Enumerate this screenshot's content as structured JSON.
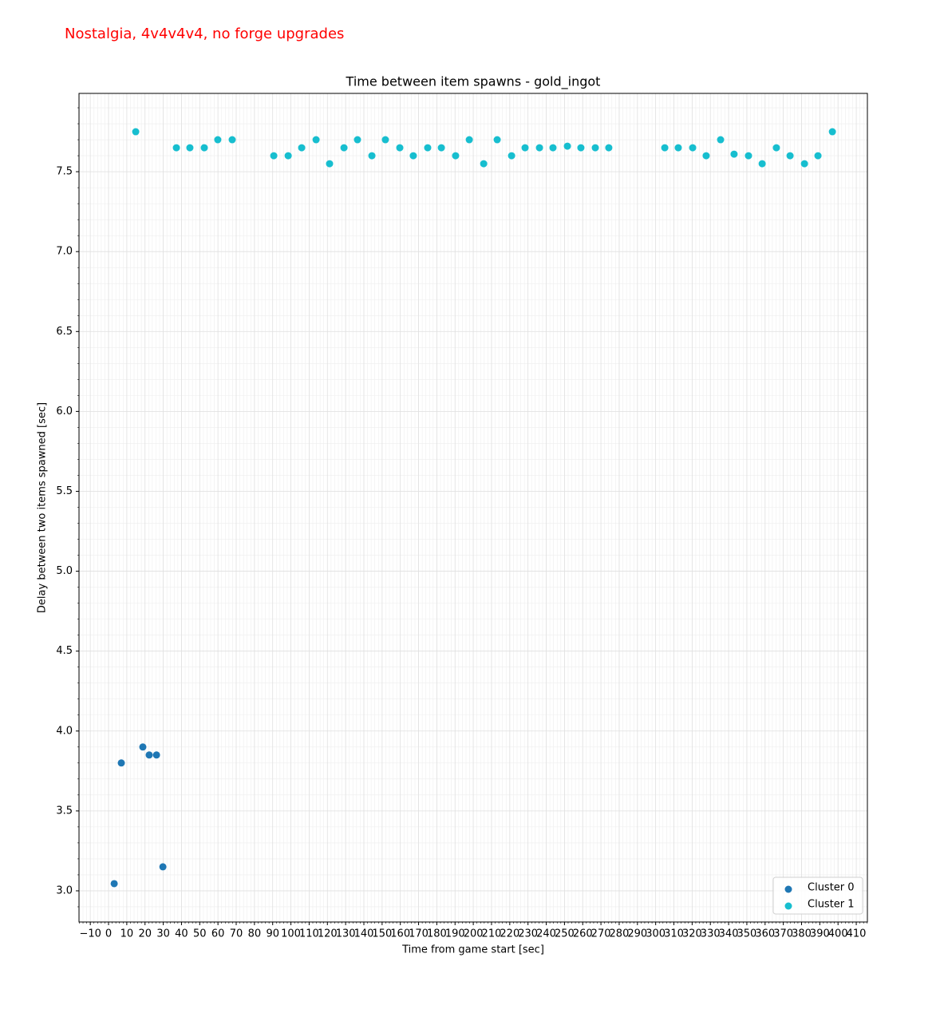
{
  "chart_data": {
    "type": "scatter",
    "suptitle": "Nostalgia, 4v4v4v4, no forge upgrades",
    "suptitle_color": "#ff0000",
    "title": "Time between item spawns - gold_ingot",
    "xlabel": "Time from game start [sec]",
    "ylabel": "Delay between two items spawned [sec]",
    "xlim": [
      -16.2,
      416.1
    ],
    "ylim": [
      2.805,
      7.99
    ],
    "xticks": [
      {
        "value": -10,
        "label": "−10"
      },
      0,
      10,
      20,
      30,
      40,
      50,
      60,
      70,
      80,
      90,
      100,
      110,
      120,
      130,
      140,
      150,
      160,
      170,
      180,
      190,
      200,
      210,
      220,
      230,
      240,
      250,
      260,
      270,
      280,
      290,
      300,
      310,
      320,
      330,
      340,
      350,
      360,
      370,
      380,
      390,
      400,
      410
    ],
    "yticks": [
      {
        "value": 3,
        "label": "3.0"
      },
      {
        "value": 3.5,
        "label": "3.5"
      },
      {
        "value": 4,
        "label": "4.0"
      },
      {
        "value": 4.5,
        "label": "4.5"
      },
      {
        "value": 5,
        "label": "5.0"
      },
      {
        "value": 5.5,
        "label": "5.5"
      },
      {
        "value": 6,
        "label": "6.0"
      },
      {
        "value": 6.5,
        "label": "6.5"
      },
      {
        "value": 7,
        "label": "7.0"
      },
      {
        "value": 7.5,
        "label": "7.5"
      }
    ],
    "grid": true,
    "minor_grid": true,
    "legend": "lower right",
    "series": [
      {
        "name": "Cluster 0",
        "color": "#1f77b4",
        "x": [
          3.1,
          7.0,
          18.8,
          22.3,
          26.3,
          29.8
        ],
        "values": [
          3.045,
          3.8,
          3.9,
          3.85,
          3.85,
          3.15
        ]
      },
      {
        "name": "Cluster 1",
        "color": "#17becf",
        "x": [
          14.9,
          37.2,
          44.6,
          52.5,
          59.9,
          67.8,
          90.6,
          98.5,
          105.9,
          113.8,
          121.2,
          129.1,
          136.5,
          144.4,
          151.8,
          159.7,
          167.1,
          175.0,
          182.5,
          190.3,
          197.8,
          205.7,
          213.1,
          221.0,
          228.4,
          236.3,
          243.7,
          251.6,
          259.0,
          266.9,
          274.3,
          305.0,
          312.4,
          320.3,
          327.7,
          335.6,
          343.0,
          350.9,
          358.4,
          366.2,
          373.7,
          381.6,
          389.0,
          396.9
        ],
        "values": [
          7.75,
          7.65,
          7.65,
          7.65,
          7.7,
          7.7,
          7.6,
          7.6,
          7.65,
          7.7,
          7.55,
          7.65,
          7.7,
          7.6,
          7.7,
          7.65,
          7.6,
          7.65,
          7.65,
          7.6,
          7.7,
          7.55,
          7.7,
          7.6,
          7.65,
          7.65,
          7.65,
          7.66,
          7.65,
          7.65,
          7.65,
          7.65,
          7.65,
          7.65,
          7.6,
          7.7,
          7.61,
          7.6,
          7.55,
          7.65,
          7.6,
          7.55,
          7.6,
          7.75
        ]
      }
    ]
  }
}
